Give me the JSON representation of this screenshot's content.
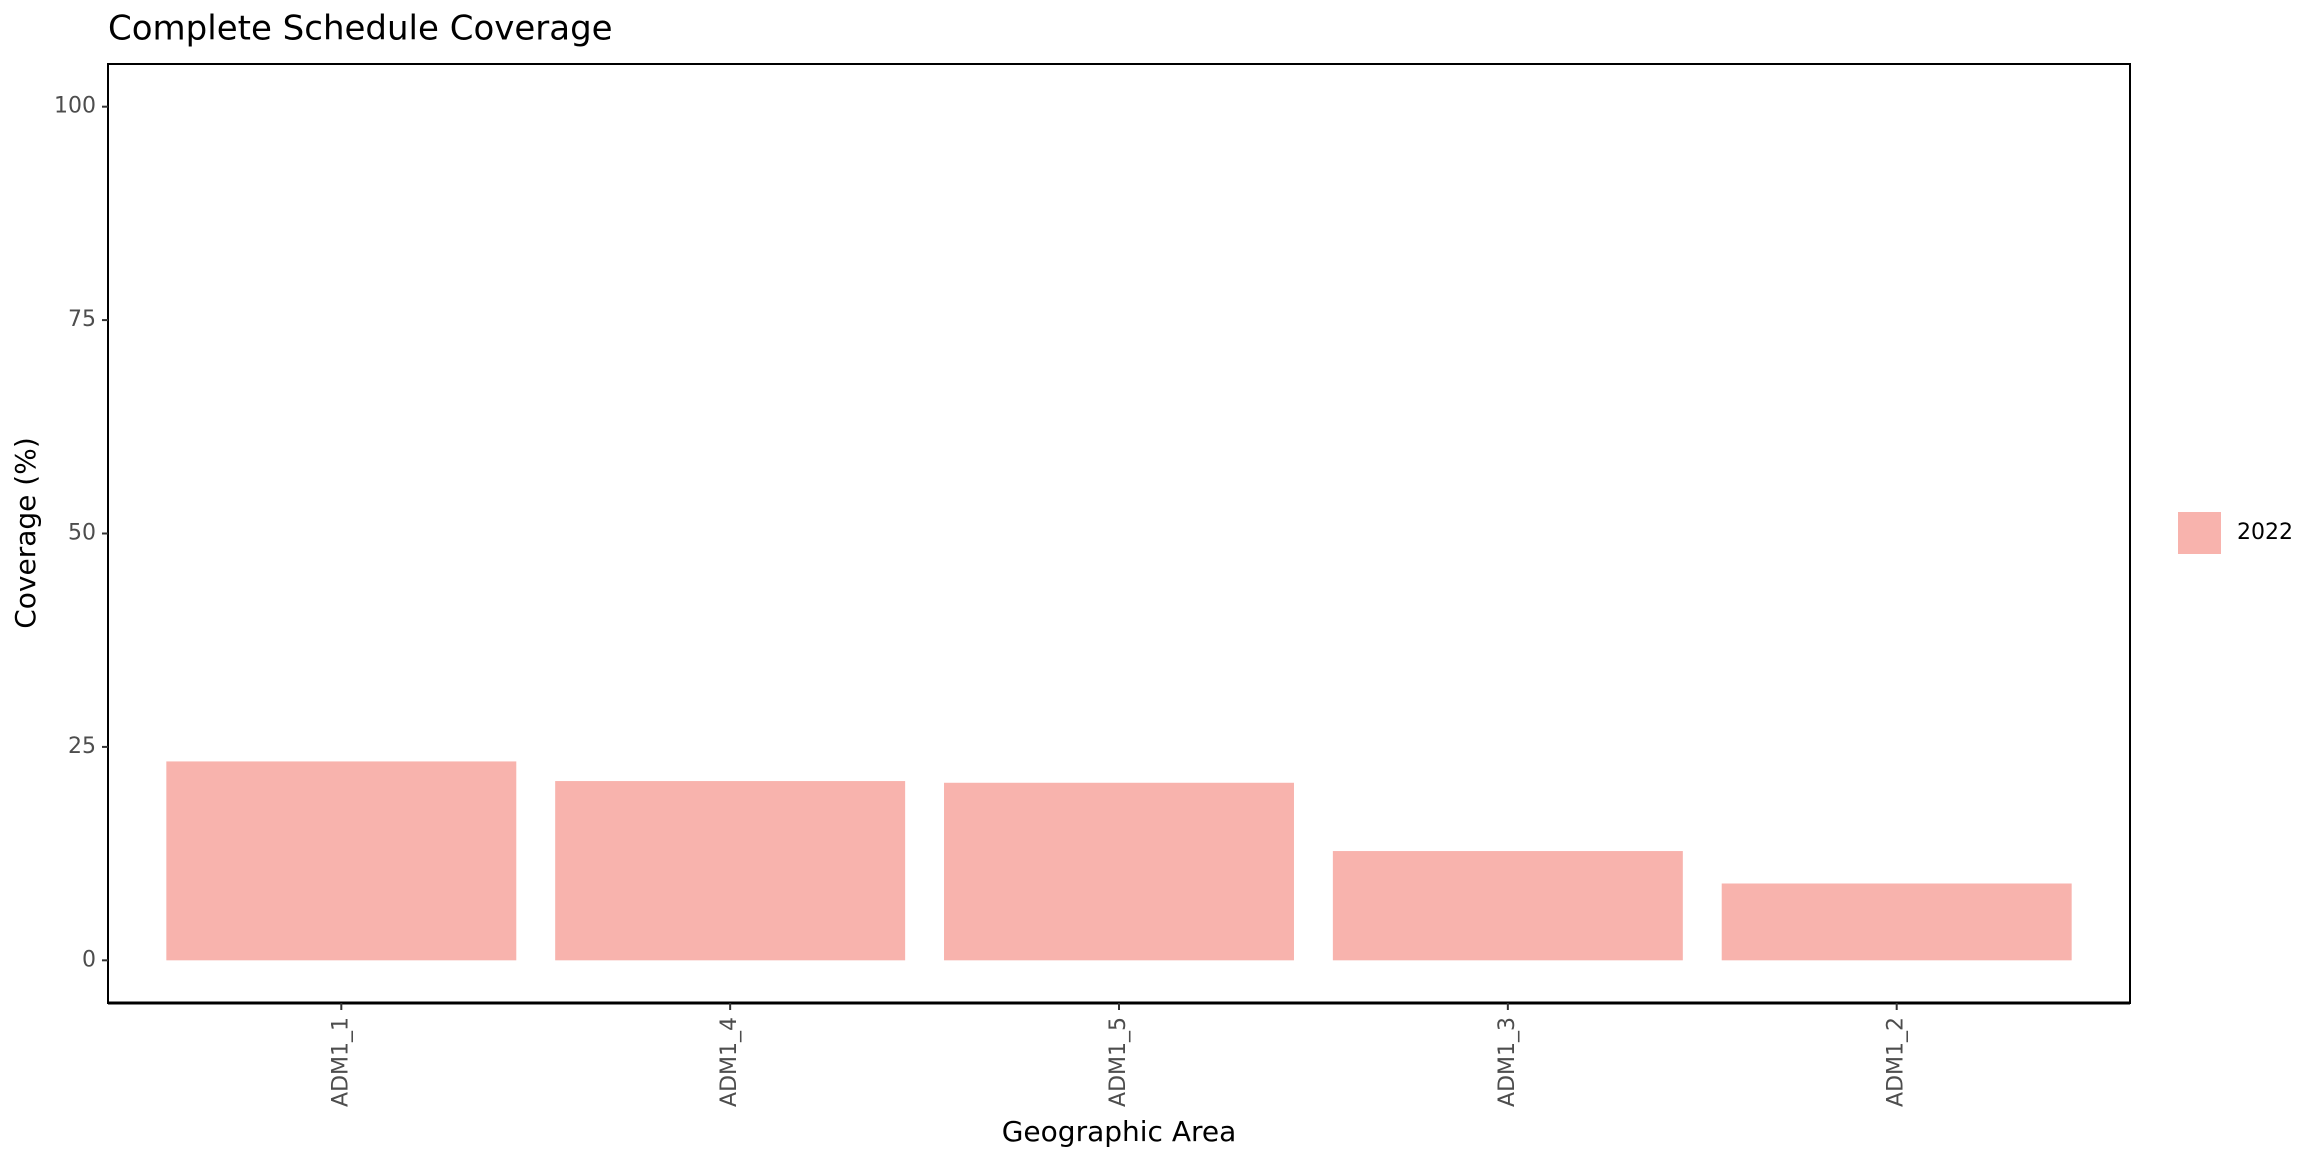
{
  "chart_data": {
    "type": "bar",
    "title": "Complete Schedule Coverage",
    "x_label": "Geographic Area",
    "y_label": "Coverage (%)",
    "categories": [
      "ADM1_1",
      "ADM1_4",
      "ADM1_5",
      "ADM1_3",
      "ADM1_2"
    ],
    "series": [
      {
        "name": "2022",
        "color": "#f8b3ad",
        "values": [
          23.3,
          21.0,
          20.8,
          12.8,
          9.0
        ]
      }
    ],
    "ylim": [
      -5,
      105
    ],
    "yticks": [
      0,
      25,
      50,
      75,
      100
    ],
    "grid": false,
    "legend": "right"
  }
}
